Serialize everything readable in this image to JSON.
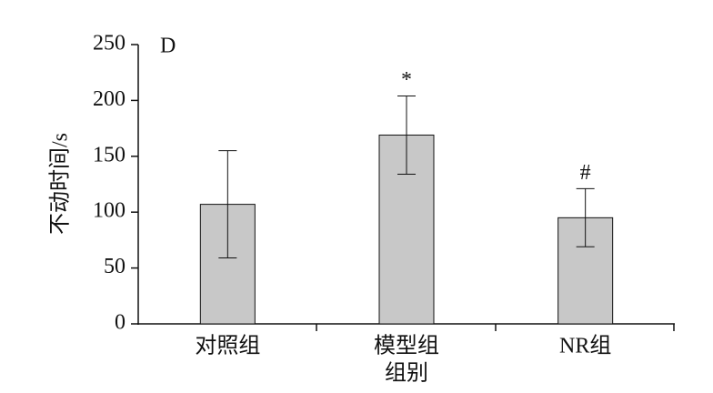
{
  "chart_data": {
    "type": "bar",
    "panel_label": "D",
    "x_label": "组别",
    "y_label": "不动时间/s",
    "categories": [
      "对照组",
      "模型组",
      "NR组"
    ],
    "values": [
      107,
      169,
      95
    ],
    "errors": [
      48,
      35,
      26
    ],
    "annotations": [
      null,
      "*",
      "#"
    ],
    "color": "#c8c8c8",
    "ylim": [
      0,
      250
    ],
    "yticks": [
      0,
      50,
      100,
      150,
      200,
      250
    ],
    "grid": false
  }
}
